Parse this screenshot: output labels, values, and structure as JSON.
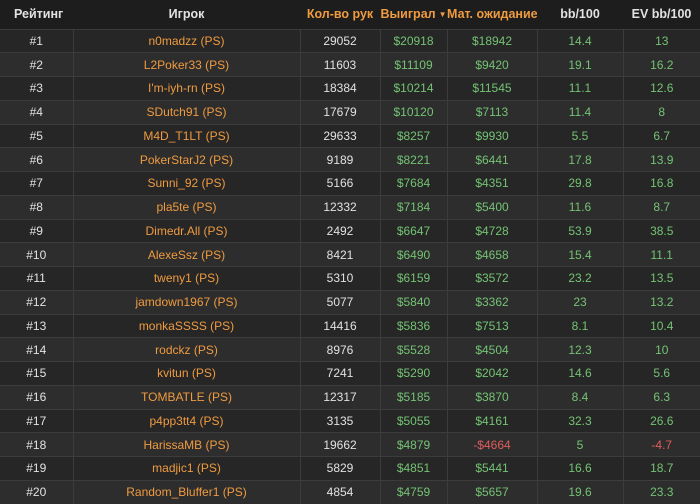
{
  "colors": {
    "orange": "#ef9b40",
    "green": "#74c374",
    "red": "#e05c5c",
    "white_text": "#e2e2e2",
    "header_bg": "#1d1d1d",
    "row_odd_bg": "#262626",
    "row_even_bg": "#2d2d2d",
    "border": "#3c3c3c"
  },
  "table": {
    "sorted_by": "Выиграл",
    "sort_direction": "desc",
    "columns": [
      {
        "label": "Рейтинг",
        "accent": false
      },
      {
        "label": "Игрок",
        "accent": false
      },
      {
        "label": "Кол-во рук",
        "accent": true
      },
      {
        "label": "Выиграл",
        "accent": true,
        "sort_icon": "▼"
      },
      {
        "label": "Мат. ожидание",
        "accent": true
      },
      {
        "label": "bb/100",
        "accent": false
      },
      {
        "label": "EV bb/100",
        "accent": false
      }
    ],
    "rows": [
      {
        "rank": "#1",
        "player": "n0madzz (PS)",
        "hands": "29052",
        "won": "$20918",
        "ev": "$18942",
        "bb100": "14.4",
        "ev_bb100": "13"
      },
      {
        "rank": "#2",
        "player": "L2Poker33 (PS)",
        "hands": "11603",
        "won": "$11109",
        "ev": "$9420",
        "bb100": "19.1",
        "ev_bb100": "16.2"
      },
      {
        "rank": "#3",
        "player": "I'm-iyh-rn (PS)",
        "hands": "18384",
        "won": "$10214",
        "ev": "$11545",
        "bb100": "11.1",
        "ev_bb100": "12.6"
      },
      {
        "rank": "#4",
        "player": "SDutch91 (PS)",
        "hands": "17679",
        "won": "$10120",
        "ev": "$7113",
        "bb100": "11.4",
        "ev_bb100": "8"
      },
      {
        "rank": "#5",
        "player": "M4D_T1LT (PS)",
        "hands": "29633",
        "won": "$8257",
        "ev": "$9930",
        "bb100": "5.5",
        "ev_bb100": "6.7"
      },
      {
        "rank": "#6",
        "player": "PokerStarJ2 (PS)",
        "hands": "9189",
        "won": "$8221",
        "ev": "$6441",
        "bb100": "17.8",
        "ev_bb100": "13.9"
      },
      {
        "rank": "#7",
        "player": "Sunni_92 (PS)",
        "hands": "5166",
        "won": "$7684",
        "ev": "$4351",
        "bb100": "29.8",
        "ev_bb100": "16.8"
      },
      {
        "rank": "#8",
        "player": "pla5te (PS)",
        "hands": "12332",
        "won": "$7184",
        "ev": "$5400",
        "bb100": "11.6",
        "ev_bb100": "8.7"
      },
      {
        "rank": "#9",
        "player": "Dimedr.All (PS)",
        "hands": "2492",
        "won": "$6647",
        "ev": "$4728",
        "bb100": "53.9",
        "ev_bb100": "38.5"
      },
      {
        "rank": "#10",
        "player": "AlexeSsz (PS)",
        "hands": "8421",
        "won": "$6490",
        "ev": "$4658",
        "bb100": "15.4",
        "ev_bb100": "11.1"
      },
      {
        "rank": "#11",
        "player": "tweny1 (PS)",
        "hands": "5310",
        "won": "$6159",
        "ev": "$3572",
        "bb100": "23.2",
        "ev_bb100": "13.5"
      },
      {
        "rank": "#12",
        "player": "jamdown1967 (PS)",
        "hands": "5077",
        "won": "$5840",
        "ev": "$3362",
        "bb100": "23",
        "ev_bb100": "13.2"
      },
      {
        "rank": "#13",
        "player": "monkaSSSS (PS)",
        "hands": "14416",
        "won": "$5836",
        "ev": "$7513",
        "bb100": "8.1",
        "ev_bb100": "10.4"
      },
      {
        "rank": "#14",
        "player": "rodckz (PS)",
        "hands": "8976",
        "won": "$5528",
        "ev": "$4504",
        "bb100": "12.3",
        "ev_bb100": "10"
      },
      {
        "rank": "#15",
        "player": "kvitun (PS)",
        "hands": "7241",
        "won": "$5290",
        "ev": "$2042",
        "bb100": "14.6",
        "ev_bb100": "5.6"
      },
      {
        "rank": "#16",
        "player": "TOMBATLE (PS)",
        "hands": "12317",
        "won": "$5185",
        "ev": "$3870",
        "bb100": "8.4",
        "ev_bb100": "6.3"
      },
      {
        "rank": "#17",
        "player": "p4pp3tt4 (PS)",
        "hands": "3135",
        "won": "$5055",
        "ev": "$4161",
        "bb100": "32.3",
        "ev_bb100": "26.6"
      },
      {
        "rank": "#18",
        "player": "HarissaMB (PS)",
        "hands": "19662",
        "won": "$4879",
        "ev": "-$4664",
        "bb100": "5",
        "ev_bb100": "-4.7"
      },
      {
        "rank": "#19",
        "player": "madjic1 (PS)",
        "hands": "5829",
        "won": "$4851",
        "ev": "$5441",
        "bb100": "16.6",
        "ev_bb100": "18.7"
      },
      {
        "rank": "#20",
        "player": "Random_Bluffer1 (PS)",
        "hands": "4854",
        "won": "$4759",
        "ev": "$5657",
        "bb100": "19.6",
        "ev_bb100": "23.3"
      }
    ]
  }
}
